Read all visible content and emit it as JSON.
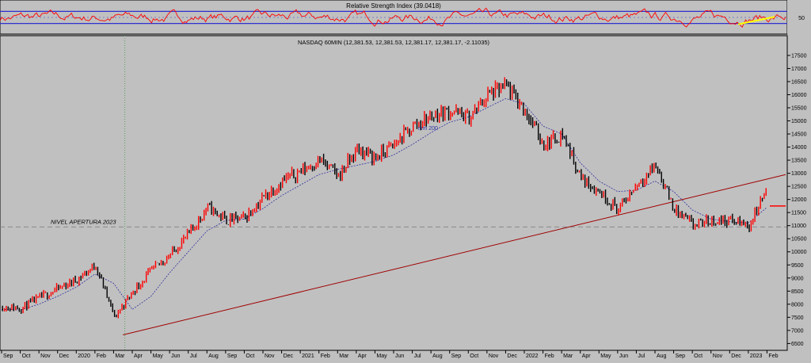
{
  "chart_data": [
    {
      "type": "line",
      "title": "Relative Strength Index (39.0418)",
      "ylim": [
        0,
        100
      ],
      "bands": [
        30,
        70
      ],
      "y_ticks": [
        50
      ],
      "series": [],
      "colors": {
        "rsi": "#ff0000",
        "band": "#3030d0",
        "trend": "#ffff00"
      }
    },
    {
      "type": "candlestick",
      "title": "NASDAQ 60MIN (12,381.53, 12,381.53, 12,381.17, 12,381.17, -2.11035)",
      "ylim": [
        6300,
        17800
      ],
      "y_ticks": [
        6500,
        7000,
        7500,
        8000,
        8500,
        9000,
        9500,
        10000,
        10500,
        11000,
        11500,
        12000,
        12500,
        13000,
        13500,
        14000,
        14500,
        15000,
        15500,
        16000,
        16500,
        17000,
        17500
      ],
      "x_labels": [
        "Sep",
        "Oct",
        "Nov",
        "Dec",
        "2020",
        "Feb",
        "Mar",
        "Apr",
        "May",
        "Jun",
        "Jul",
        "Aug",
        "Sep",
        "Oct",
        "Nov",
        "Dec",
        "2021",
        "Feb",
        "Mar",
        "Apr",
        "May",
        "Jun",
        "Jul",
        "Aug",
        "Sep",
        "Oct",
        "Nov",
        "Dec",
        "2022",
        "Feb",
        "Mar",
        "Apr",
        "May",
        "Jun",
        "Jul",
        "Aug",
        "Sep",
        "Oct",
        "Nov",
        "Dec",
        "2023",
        "Feb"
      ],
      "series": [
        {
          "name": "NASDAQ",
          "month_index": [
            0,
            1,
            2,
            3,
            4,
            5,
            6,
            7,
            8,
            9,
            10,
            11,
            12,
            13,
            14,
            15,
            16,
            17,
            18,
            19,
            20,
            21,
            22,
            23,
            24,
            25,
            26,
            27,
            28,
            29,
            30,
            31,
            32,
            33,
            34,
            35,
            36,
            37,
            38,
            39,
            40,
            41
          ],
          "values": [
            7900,
            7850,
            8250,
            8600,
            8950,
            9500,
            7500,
            8500,
            9300,
            9900,
            10700,
            11700,
            11200,
            11300,
            12100,
            12700,
            13100,
            13500,
            12900,
            13900,
            13600,
            14100,
            14800,
            15200,
            15400,
            15100,
            16000,
            16300,
            15400,
            14100,
            14500,
            12800,
            12300,
            11600,
            12600,
            13300,
            11600,
            11000,
            11200,
            11200,
            11000,
            12500
          ]
        },
        {
          "name": "mm 200",
          "month_index": [
            0,
            1,
            2,
            3,
            4,
            5,
            6,
            7,
            8,
            9,
            10,
            11,
            12,
            13,
            14,
            15,
            16,
            17,
            18,
            19,
            20,
            21,
            22,
            23,
            24,
            25,
            26,
            27,
            28,
            29,
            30,
            31,
            32,
            33,
            34,
            35,
            36,
            37,
            38,
            39,
            40,
            41
          ],
          "values": [
            7800,
            7780,
            8000,
            8300,
            8650,
            9150,
            8800,
            7800,
            8300,
            9200,
            10000,
            10800,
            11200,
            11250,
            11650,
            12150,
            12550,
            12950,
            13150,
            13300,
            13450,
            13700,
            14100,
            14550,
            14950,
            15150,
            15500,
            15850,
            15650,
            14800,
            14500,
            13400,
            12700,
            12300,
            12350,
            12700,
            12300,
            11600,
            11250,
            11150,
            11100,
            11700
          ]
        }
      ],
      "reference_lines": [
        {
          "label": "NIVEL APERTURA 2023",
          "value": 10950
        }
      ],
      "trendline": {
        "from": {
          "month_index": 6.5,
          "value": 6830
        },
        "to": {
          "month_index": 42,
          "value": 12950
        }
      },
      "last_price": 11750,
      "event_marker_month_index": 6.6,
      "colors": {
        "up": "#ff0000",
        "down": "#000000",
        "ma": "#3030a0",
        "trendline": "#a00000",
        "reference": "#808080",
        "marker": "#60a060",
        "last": "#ff0000"
      }
    }
  ]
}
